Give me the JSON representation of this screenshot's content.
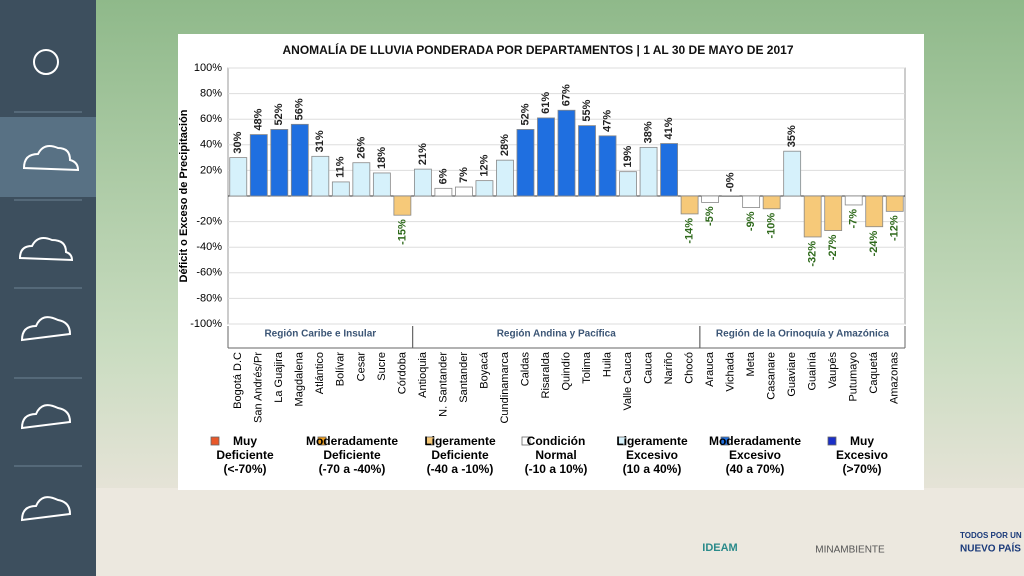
{
  "chart_data": {
    "type": "bar",
    "title": "ANOMALÍA DE LLUVIA PONDERADA POR DEPARTAMENTOS | 1 AL 30 DE MAYO DE 2017",
    "y_label": "Déficit o Exceso de Precipitación",
    "categories": [
      "Bogotá D.C",
      "San Andrés/Pr",
      "La Guajira",
      "Magdalena",
      "Atlántico",
      "Bolívar",
      "Cesar",
      "Sucre",
      "Córdoba",
      "Antioquia",
      "N. Santander",
      "Santander",
      "Boyacá",
      "Cundinamarca",
      "Caldas",
      "Risaralda",
      "Quindío",
      "Tolima",
      "Huila",
      "Valle Cauca",
      "Cauca",
      "Nariño",
      "Chocó",
      "Arauca",
      "Vichada",
      "Meta",
      "Casanare",
      "Guaviare",
      "Guainía",
      "Vaupés",
      "Putumayo",
      "Caquetá",
      "Amazonas"
    ],
    "values": [
      30,
      48,
      52,
      56,
      31,
      11,
      26,
      18,
      -15,
      21,
      6,
      7,
      12,
      28,
      52,
      61,
      67,
      55,
      47,
      19,
      38,
      41,
      -14,
      -5,
      0,
      -9,
      -10,
      35,
      -32,
      -27,
      -7,
      -24,
      -12
    ],
    "value_labels": [
      "30%",
      "48%",
      "52%",
      "56%",
      "31%",
      "11%",
      "26%",
      "18%",
      "-15%",
      "21%",
      "6%",
      "7%",
      "12%",
      "28%",
      "52%",
      "61%",
      "67%",
      "55%",
      "47%",
      "19%",
      "38%",
      "41%",
      "-14%",
      "-5%",
      "-0%",
      "-9%",
      "-10%",
      "35%",
      "-32%",
      "-27%",
      "-7%",
      "-24%",
      "-12%"
    ],
    "colors": [
      "#d6f1fb",
      "#1f6fe0",
      "#1f6fe0",
      "#1f6fe0",
      "#d6f1fb",
      "#d6f1fb",
      "#d6f1fb",
      "#d6f1fb",
      "#f6c979",
      "#d6f1fb",
      "#ffffff",
      "#ffffff",
      "#d6f1fb",
      "#d6f1fb",
      "#1f6fe0",
      "#1f6fe0",
      "#1f6fe0",
      "#1f6fe0",
      "#1f6fe0",
      "#d6f1fb",
      "#d6f1fb",
      "#1f6fe0",
      "#f6c979",
      "#ffffff",
      "#ffffff",
      "#ffffff",
      "#f6c979",
      "#d6f1fb",
      "#f6c979",
      "#f6c979",
      "#ffffff",
      "#f6c979",
      "#f6c979"
    ],
    "regions": [
      {
        "name": "Región Caribe e Insular",
        "count": 9
      },
      {
        "name": "Región Andina y Pacífica",
        "count": 14
      },
      {
        "name": "Región de la Orinoquía y Amazónica",
        "count": 10
      }
    ],
    "ylim": [
      -100,
      100
    ],
    "yticks": [
      {
        "value": 100,
        "label": "100%"
      },
      {
        "value": 80,
        "label": "80%"
      },
      {
        "value": 60,
        "label": "60%"
      },
      {
        "value": 40,
        "label": "40%"
      },
      {
        "value": 20,
        "label": "20%"
      },
      {
        "value": -20,
        "label": "-20%"
      },
      {
        "value": -40,
        "label": "-40%"
      },
      {
        "value": -60,
        "label": "-60%"
      },
      {
        "value": -80,
        "label": "-80%"
      },
      {
        "value": -100,
        "label": "-100%"
      }
    ],
    "grid": true,
    "legend": [
      {
        "name": [
          "Muy",
          "Deficiente"
        ],
        "range": "(<-70%)",
        "color": "#e8582a"
      },
      {
        "name": [
          "Moderadamente",
          "Deficiente"
        ],
        "range": "(-70 a -40%)",
        "color": "#f0a020"
      },
      {
        "name": [
          "Ligeramente",
          "Deficiente"
        ],
        "range": "(-40 a -10%)",
        "color": "#f6c979"
      },
      {
        "name": [
          "Condición",
          "Normal"
        ],
        "range": "(-10 a 10%)",
        "color": "#ffffff"
      },
      {
        "name": [
          "Ligeramente",
          "Excesivo"
        ],
        "range": "(10 a 40%)",
        "color": "#d6f1fb"
      },
      {
        "name": [
          "Moderadamente",
          "Excesivo"
        ],
        "range": "(40 a 70%)",
        "color": "#1f6fe0"
      },
      {
        "name": [
          "Muy",
          "Excesivo"
        ],
        "range": "(>70%)",
        "color": "#1a2fc8"
      }
    ]
  },
  "footer": {
    "ideam": "IDEAM",
    "ministry": "MINAMBIENTE",
    "slogan": [
      "TODOS POR UN",
      "NUEVO PAÍS"
    ]
  }
}
